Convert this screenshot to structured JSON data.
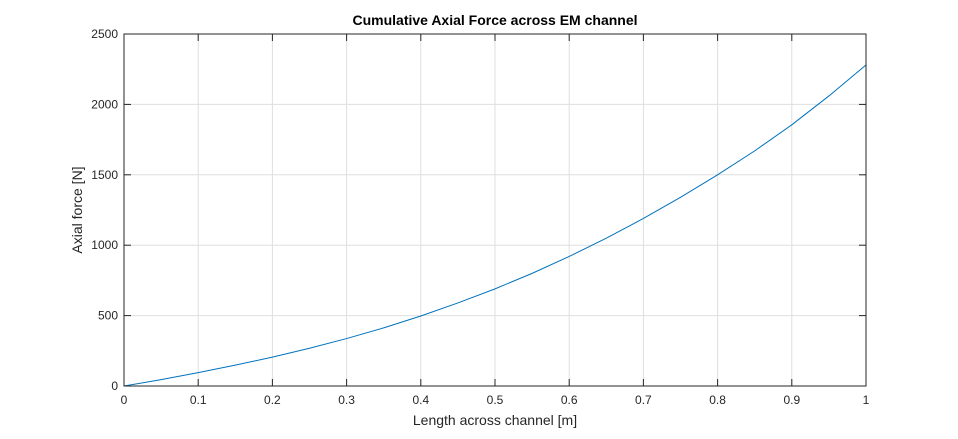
{
  "chart_data": {
    "type": "line",
    "title": "Cumulative Axial Force across EM channel",
    "xlabel": "Length across channel [m]",
    "ylabel": "Axial force [N]",
    "xlim": [
      0,
      1
    ],
    "ylim": [
      0,
      2500
    ],
    "xticks": [
      0,
      0.1,
      0.2,
      0.3,
      0.4,
      0.5,
      0.6,
      0.7,
      0.8,
      0.9,
      1
    ],
    "xtick_labels": [
      "0",
      "0.1",
      "0.2",
      "0.3",
      "0.4",
      "0.5",
      "0.6",
      "0.7",
      "0.8",
      "0.9",
      "1"
    ],
    "yticks": [
      0,
      500,
      1000,
      1500,
      2000,
      2500
    ],
    "ytick_labels": [
      "0",
      "500",
      "1000",
      "1500",
      "2000",
      "2500"
    ],
    "grid": true,
    "colors": {
      "line": "#0072BD",
      "grid": "#dfdfdf",
      "axes": "#262626"
    },
    "series": [
      {
        "x": [
          0,
          0.05,
          0.1,
          0.15,
          0.2,
          0.25,
          0.3,
          0.35,
          0.4,
          0.45,
          0.5,
          0.55,
          0.6,
          0.65,
          0.7,
          0.75,
          0.8,
          0.85,
          0.9,
          0.95,
          1.0
        ],
        "y": [
          0,
          45,
          95,
          148,
          205,
          268,
          337,
          413,
          497,
          590,
          690,
          800,
          920,
          1050,
          1190,
          1340,
          1500,
          1670,
          1855,
          2060,
          2280
        ]
      }
    ]
  }
}
